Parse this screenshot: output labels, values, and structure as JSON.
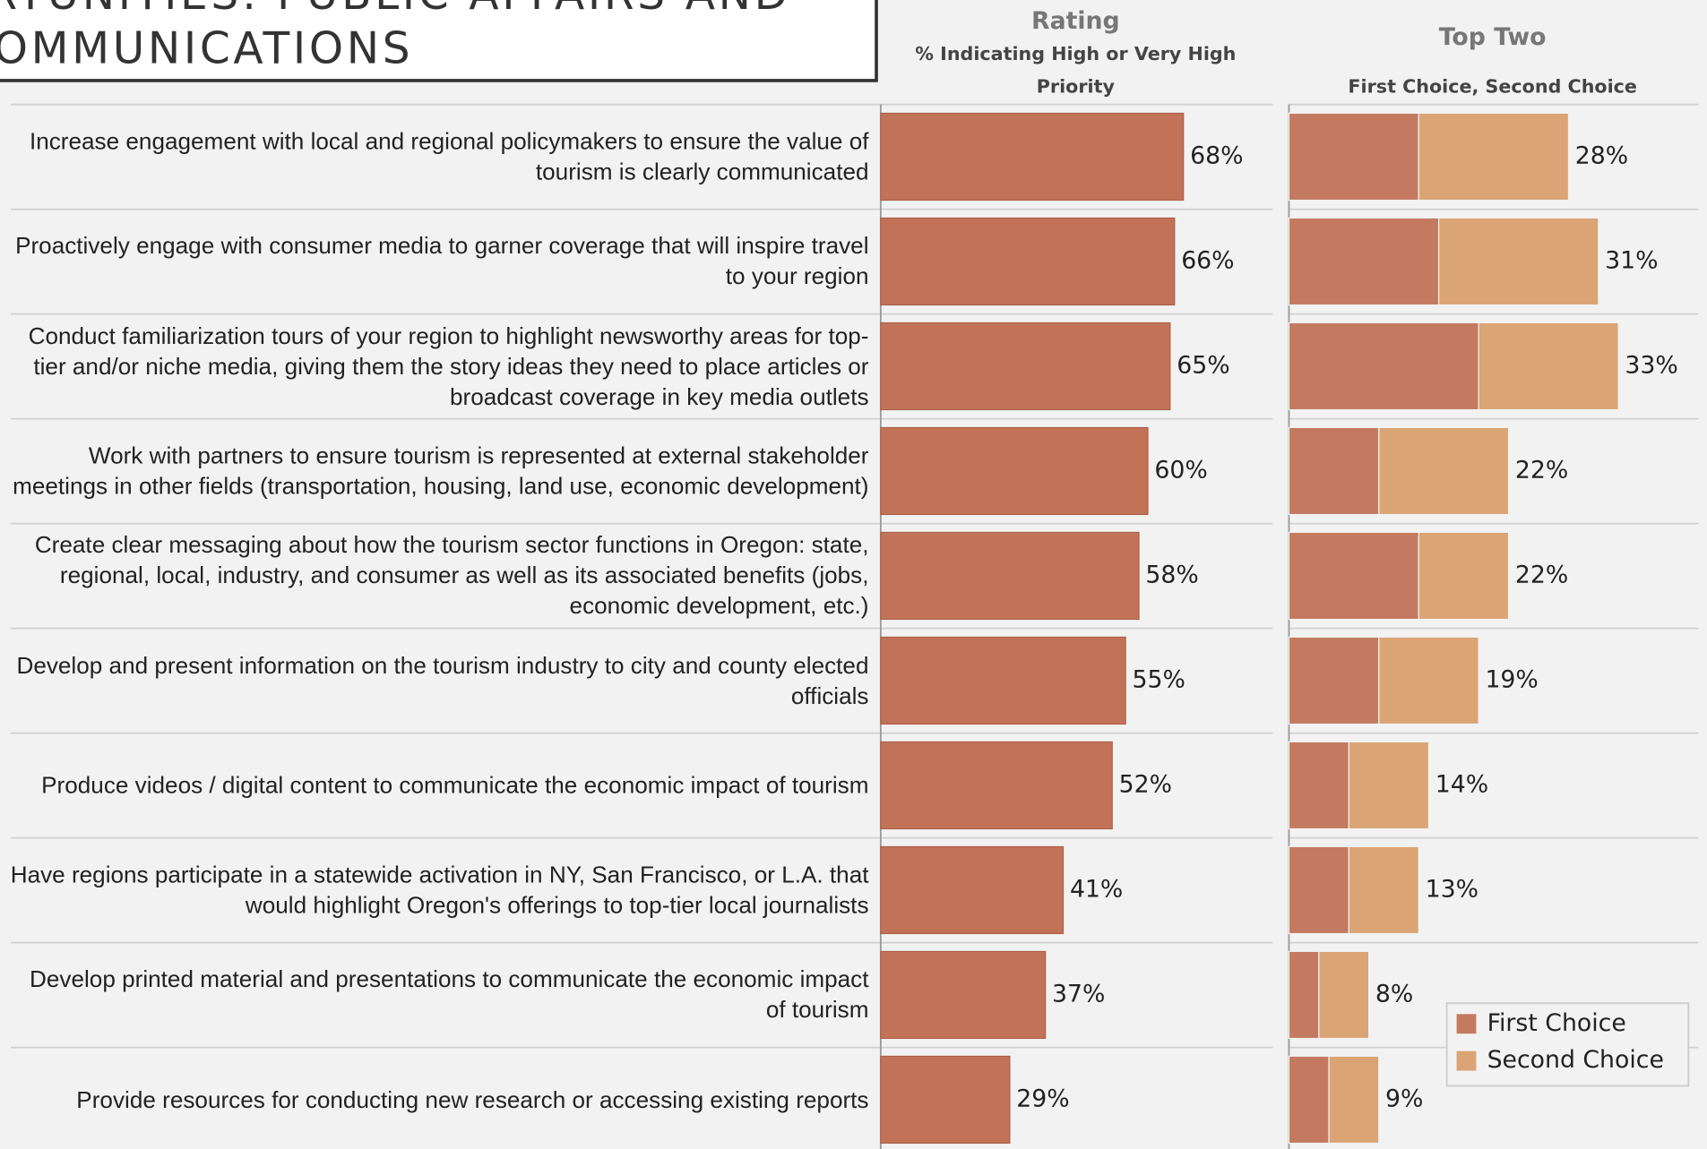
{
  "header": {
    "title_lines": [
      "RTUNITIES: PUBLIC AFFAIRS AND",
      "OMMUNICATIONS"
    ]
  },
  "chart_data": [
    {
      "type": "bar",
      "orientation": "horizontal",
      "title": "Rating",
      "subtitle": "% Indicating High or Very High Priority",
      "categories": [
        "Increase engagement with local and regional policymakers to ensure the value of tourism is clearly communicated",
        "Proactively engage with consumer media to garner coverage that will inspire travel to your region",
        "Conduct familiarization tours of your region to highlight newsworthy areas for top-tier and/or niche media, giving them the story ideas they need to place articles or broadcast coverage in key media outlets",
        "Work with partners to ensure tourism is represented at external stakeholder meetings in other fields (transportation, housing, land use, economic development)",
        "Create clear messaging about how the tourism sector functions in Oregon: state, regional, local, industry, and consumer as well as its associated benefits (jobs, economic development, etc.)",
        "Develop and present information on the tourism industry to city and county elected officials",
        "Produce videos / digital content to communicate the economic impact of tourism",
        "Have regions participate in a statewide activation in NY, San Francisco, or L.A. that would highlight Oregon's offerings to top-tier local journalists",
        "Develop printed material and presentations to communicate the economic impact of tourism",
        "Provide resources for conducting new research or accessing existing reports"
      ],
      "values": [
        68,
        66,
        65,
        60,
        58,
        55,
        52,
        41,
        37,
        29
      ],
      "value_labels": [
        "68%",
        "66%",
        "65%",
        "60%",
        "58%",
        "55%",
        "52%",
        "41%",
        "37%",
        "29%"
      ],
      "color": "#c17257",
      "xlim": [
        0,
        88
      ]
    },
    {
      "type": "stacked_bar",
      "orientation": "horizontal",
      "title": "Top Two",
      "subtitle": "First Choice, Second Choice",
      "series": [
        {
          "name": "First Choice",
          "color": "#c47a60",
          "values": [
            13,
            15,
            19,
            9,
            13,
            9,
            6,
            6,
            3,
            4
          ]
        },
        {
          "name": "Second Choice",
          "color": "#dba475",
          "values": [
            15,
            16,
            14,
            13,
            9,
            10,
            8,
            7,
            5,
            5
          ]
        }
      ],
      "totals": [
        28,
        31,
        33,
        22,
        22,
        19,
        14,
        13,
        8,
        9
      ],
      "value_labels": [
        "28%",
        "31%",
        "33%",
        "22%",
        "22%",
        "19%",
        "14%",
        "13%",
        "8%",
        "9%"
      ],
      "xlim": [
        0,
        41
      ],
      "legend": "lower right"
    }
  ]
}
